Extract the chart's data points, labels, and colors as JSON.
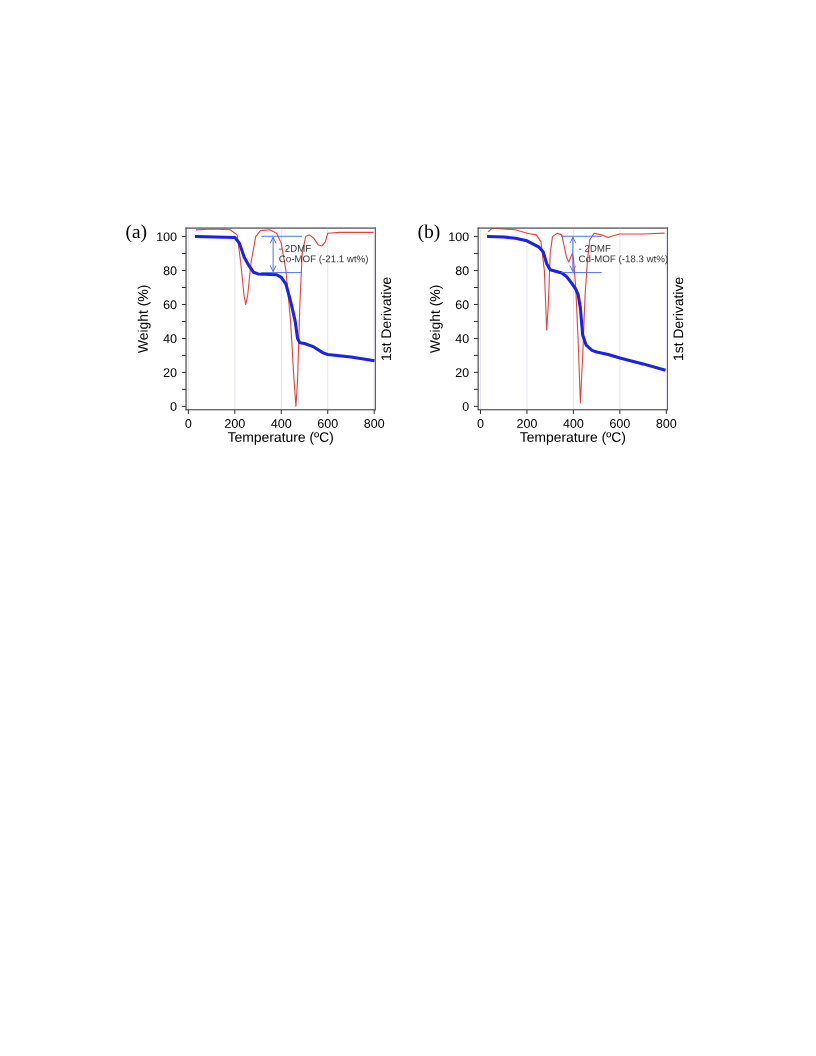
{
  "chart_data": [
    {
      "type": "line",
      "title": "(a)",
      "xlabel": "Temperature (ºC)",
      "ylabel": "Weight (%)",
      "y2label": "1st Derivative",
      "xlim": [
        -10,
        805
      ],
      "xticks": [
        0,
        200,
        400,
        600,
        800
      ],
      "ylim": [
        -2,
        105
      ],
      "yticks": [
        0,
        {
          "value": 10,
          "label": null
        },
        20,
        {
          "value": 30,
          "label": null
        },
        40,
        {
          "value": 50,
          "label": null
        },
        60,
        {
          "value": 70,
          "label": null
        },
        80,
        {
          "value": 90,
          "label": null
        },
        100
      ],
      "grid": "x",
      "series": [
        {
          "color": "#e8423c",
          "x": [
            35,
            100,
            180,
            210,
            225,
            240,
            247,
            255,
            270,
            290,
            310,
            350,
            380,
            400,
            420,
            440,
            455,
            463,
            470,
            480,
            490,
            505,
            520,
            540,
            560,
            575,
            590,
            600,
            650,
            795
          ],
          "values": [
            104,
            104.5,
            104,
            101,
            85,
            65,
            60,
            65,
            85,
            100,
            103.5,
            104,
            102,
            96,
            80,
            50,
            15,
            0,
            15,
            60,
            90,
            100,
            101,
            99,
            95,
            94.5,
            97,
            102,
            102.5,
            102.5
          ]
        },
        {
          "color": "#1a22e8",
          "x": [
            35,
            200,
            220,
            240,
            260,
            280,
            300,
            380,
            400,
            420,
            440,
            460,
            470,
            480,
            500,
            540,
            580,
            600,
            700,
            795
          ],
          "values": [
            100,
            99.5,
            96,
            88,
            83,
            79,
            78,
            77.5,
            76,
            72,
            62,
            50,
            40,
            37.5,
            37,
            35,
            31.5,
            30.5,
            29,
            27
          ]
        }
      ],
      "annotations": [
        "- 2DMF\nCo-MOF (-21.1 wt%)"
      ]
    },
    {
      "type": "line",
      "title": "(b)",
      "xlabel": "Temperature (ºC)",
      "ylabel": "Weight (%)",
      "y2label": "1st Derivative",
      "xlim": [
        -10,
        805
      ],
      "xticks": [
        0,
        200,
        400,
        600,
        800
      ],
      "ylim": [
        -2,
        105
      ],
      "yticks": [
        0,
        {
          "value": 10,
          "label": null
        },
        20,
        {
          "value": 30,
          "label": null
        },
        40,
        {
          "value": 50,
          "label": null
        },
        60,
        {
          "value": 70,
          "label": null
        },
        80,
        {
          "value": 90,
          "label": null
        },
        100
      ],
      "grid": "x",
      "series": [
        {
          "color": "#e8423c",
          "x": [
            35,
            50,
            100,
            150,
            200,
            240,
            260,
            275,
            285,
            292,
            300,
            310,
            330,
            350,
            370,
            380,
            395,
            400,
            410,
            420,
            430,
            440,
            450,
            460,
            470,
            490,
            520,
            550,
            570,
            600,
            700,
            790
          ],
          "values": [
            103,
            105,
            104.5,
            104,
            102,
            101,
            97,
            80,
            45,
            60,
            90,
            100,
            102,
            101,
            88,
            85,
            90,
            87,
            70,
            40,
            2,
            30,
            65,
            85,
            98,
            102,
            101,
            99.5,
            100.5,
            101.5,
            101.5,
            102
          ]
        },
        {
          "color": "#1a22e8",
          "x": [
            35,
            100,
            150,
            200,
            250,
            270,
            285,
            300,
            350,
            370,
            390,
            410,
            420,
            430,
            440,
            455,
            480,
            500,
            550,
            600,
            700,
            790
          ],
          "values": [
            100,
            99.8,
            99,
            97.5,
            94,
            91,
            84,
            80.5,
            78.5,
            76.5,
            73,
            69,
            66,
            58,
            42,
            36,
            33,
            32,
            30.5,
            28.5,
            25,
            21.5
          ]
        }
      ],
      "annotations": [
        "- 2DMF\nCd-MOF (-18.3 wt%)"
      ]
    }
  ]
}
